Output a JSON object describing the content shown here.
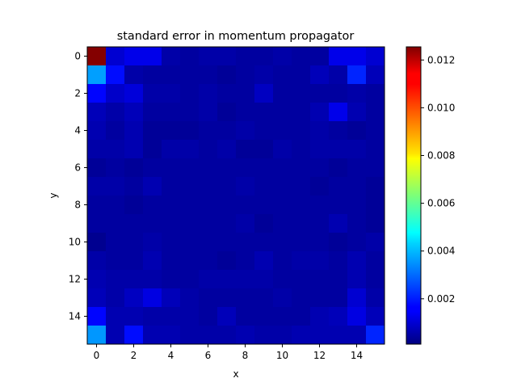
{
  "chart_data": {
    "type": "heatmap",
    "title": "standard error in momentum propagator",
    "xlabel": "x",
    "ylabel": "y",
    "x_ticks": [
      0,
      2,
      4,
      6,
      8,
      10,
      12,
      14
    ],
    "y_ticks": [
      0,
      2,
      4,
      6,
      8,
      10,
      12,
      14
    ],
    "xlim": [
      -0.5,
      15.5
    ],
    "ylim": [
      15.5,
      -0.5
    ],
    "colormap": "jet",
    "color_range": [
      0.0001,
      0.01255
    ],
    "colorbar_ticks": [
      "0.002",
      "0.004",
      "0.006",
      "0.008",
      "0.010",
      "0.012"
    ],
    "colorbar_tick_values": [
      0.002,
      0.004,
      0.006,
      0.008,
      0.01,
      0.012
    ],
    "values": [
      [
        0.0125,
        0.0011,
        0.0014,
        0.0014,
        0.0006,
        0.0005,
        0.0006,
        0.0006,
        0.0005,
        0.0005,
        0.0006,
        0.0005,
        0.0005,
        0.0014,
        0.0014,
        0.0011
      ],
      [
        0.0036,
        0.0018,
        0.0006,
        0.0005,
        0.0005,
        0.0005,
        0.0005,
        0.0004,
        0.0005,
        0.0006,
        0.0005,
        0.0005,
        0.0008,
        0.0006,
        0.0021,
        0.0008
      ],
      [
        0.0017,
        0.001,
        0.0012,
        0.0006,
        0.0006,
        0.0005,
        0.0006,
        0.0005,
        0.0005,
        0.0009,
        0.0005,
        0.0005,
        0.0005,
        0.0005,
        0.0006,
        0.0005
      ],
      [
        0.0008,
        0.0006,
        0.0008,
        0.0005,
        0.0005,
        0.0005,
        0.0006,
        0.0004,
        0.0005,
        0.0005,
        0.0005,
        0.0005,
        0.0007,
        0.0014,
        0.0007,
        0.0005
      ],
      [
        0.0007,
        0.0005,
        0.0007,
        0.0004,
        0.0004,
        0.0004,
        0.0005,
        0.0005,
        0.0006,
        0.0005,
        0.0005,
        0.0005,
        0.0006,
        0.0005,
        0.0004,
        0.0005
      ],
      [
        0.0006,
        0.0006,
        0.0007,
        0.0004,
        0.0006,
        0.0006,
        0.0005,
        0.0006,
        0.0004,
        0.0004,
        0.0006,
        0.0005,
        0.0006,
        0.0006,
        0.0006,
        0.0005
      ],
      [
        0.0004,
        0.0005,
        0.0004,
        0.0005,
        0.0005,
        0.0005,
        0.0005,
        0.0005,
        0.0005,
        0.0005,
        0.0005,
        0.0005,
        0.0005,
        0.0004,
        0.0005,
        0.0005
      ],
      [
        0.0006,
        0.0006,
        0.0005,
        0.0007,
        0.0005,
        0.0005,
        0.0005,
        0.0005,
        0.0006,
        0.0005,
        0.0005,
        0.0005,
        0.0004,
        0.0005,
        0.0005,
        0.0004
      ],
      [
        0.0005,
        0.0005,
        0.0004,
        0.0005,
        0.0005,
        0.0005,
        0.0005,
        0.0005,
        0.0005,
        0.0005,
        0.0005,
        0.0005,
        0.0005,
        0.0005,
        0.0005,
        0.0004
      ],
      [
        0.0005,
        0.0005,
        0.0005,
        0.0005,
        0.0005,
        0.0005,
        0.0005,
        0.0005,
        0.0006,
        0.0004,
        0.0005,
        0.0005,
        0.0005,
        0.0007,
        0.0005,
        0.0004
      ],
      [
        0.0003,
        0.0005,
        0.0005,
        0.0006,
        0.0005,
        0.0005,
        0.0005,
        0.0005,
        0.0005,
        0.0005,
        0.0005,
        0.0005,
        0.0005,
        0.0004,
        0.0005,
        0.0006
      ],
      [
        0.0006,
        0.0005,
        0.0005,
        0.0007,
        0.0005,
        0.0005,
        0.0005,
        0.0004,
        0.0005,
        0.0007,
        0.0005,
        0.0006,
        0.0006,
        0.0005,
        0.0007,
        0.0005
      ],
      [
        0.0007,
        0.0006,
        0.0006,
        0.0006,
        0.0005,
        0.0005,
        0.0006,
        0.0006,
        0.0006,
        0.0006,
        0.0005,
        0.0005,
        0.0005,
        0.0005,
        0.0007,
        0.0005
      ],
      [
        0.0008,
        0.0006,
        0.0009,
        0.0013,
        0.0008,
        0.0006,
        0.0005,
        0.0005,
        0.0005,
        0.0005,
        0.0006,
        0.0005,
        0.0005,
        0.0005,
        0.0011,
        0.0006
      ],
      [
        0.0017,
        0.0007,
        0.0007,
        0.0006,
        0.0006,
        0.0006,
        0.0005,
        0.0008,
        0.0005,
        0.0005,
        0.0005,
        0.0005,
        0.0007,
        0.0008,
        0.0013,
        0.0008
      ],
      [
        0.0035,
        0.0007,
        0.0018,
        0.0007,
        0.0007,
        0.0006,
        0.0006,
        0.0006,
        0.0007,
        0.0006,
        0.0006,
        0.0007,
        0.0007,
        0.0007,
        0.0007,
        0.0021
      ]
    ]
  }
}
